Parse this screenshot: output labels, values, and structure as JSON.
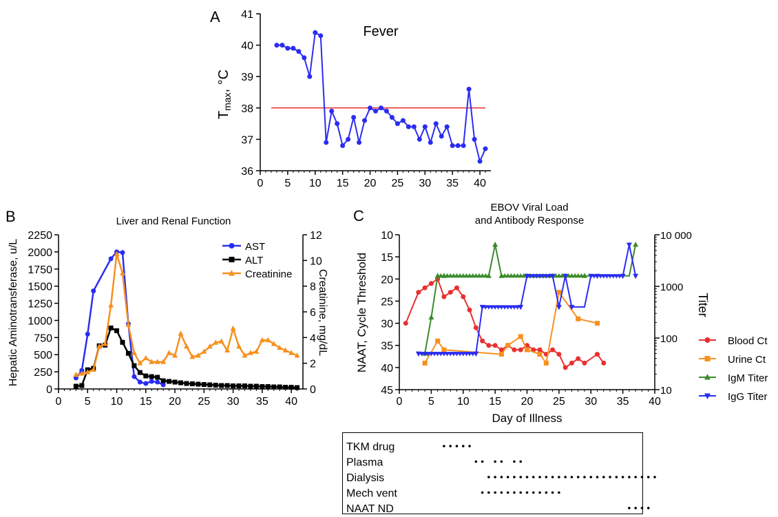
{
  "chart_data": [
    {
      "panel": "A",
      "type": "line",
      "title": "Fever",
      "xlabel": "",
      "ylabel": "T",
      "ylabel_sub": "max",
      "ylabel_unit": ", °C",
      "xlim": [
        0,
        42
      ],
      "ylim": [
        36,
        41
      ],
      "x_ticks": [
        "0",
        "5",
        "10",
        "15",
        "20",
        "25",
        "30",
        "35",
        "40"
      ],
      "y_ticks": [
        "36",
        "37",
        "38",
        "39",
        "40",
        "41"
      ],
      "reference_line": {
        "y": 38,
        "x_range": [
          2,
          41
        ],
        "color": "#e8302f"
      },
      "series": [
        {
          "color": "#2a2cf2",
          "x": [
            3,
            4,
            5,
            6,
            7,
            8,
            9,
            10,
            11,
            12,
            13,
            14,
            15,
            16,
            17,
            18,
            19,
            20,
            21,
            22,
            23,
            24,
            25,
            26,
            27,
            28,
            29,
            30,
            31,
            32,
            33,
            34,
            35,
            36,
            37,
            38,
            39,
            40,
            41
          ],
          "values": [
            40.0,
            40.0,
            39.9,
            39.9,
            39.8,
            39.6,
            39.0,
            40.4,
            40.3,
            36.9,
            37.9,
            37.5,
            36.8,
            37.0,
            37.7,
            36.9,
            37.6,
            38.0,
            37.9,
            38.0,
            37.9,
            37.7,
            37.5,
            37.6,
            37.4,
            37.4,
            37.0,
            37.4,
            36.9,
            37.5,
            37.1,
            37.4,
            36.8,
            36.8,
            36.8,
            38.6,
            37.0,
            36.3,
            36.7
          ]
        }
      ]
    },
    {
      "panel": "B",
      "type": "line",
      "title": "Liver and Renal Function",
      "xlabel": "",
      "ylabel": "Hepatic Aminotransferase, u/L",
      "y2label": "Creatinine, mg/dL",
      "xlim": [
        0,
        42
      ],
      "ylim": [
        0,
        2250
      ],
      "y2lim": [
        0,
        12
      ],
      "x_ticks": [
        "0",
        "5",
        "10",
        "15",
        "20",
        "25",
        "30",
        "35",
        "40"
      ],
      "y_ticks": [
        "0",
        "250",
        "500",
        "750",
        "1000",
        "1250",
        "1500",
        "1750",
        "2000",
        "2250"
      ],
      "y2_ticks": [
        "0",
        "2",
        "4",
        "6",
        "8",
        "10",
        "12"
      ],
      "legend_position": "top-right",
      "series": [
        {
          "name": "AST",
          "color": "#2a2cf2",
          "marker": "circle",
          "axis": "left",
          "x": [
            3,
            4,
            5,
            6,
            9,
            10,
            11,
            12,
            13,
            14,
            15,
            16,
            17,
            18
          ],
          "values": [
            160,
            270,
            800,
            1430,
            1900,
            2000,
            1990,
            950,
            180,
            100,
            80,
            110,
            100,
            60
          ]
        },
        {
          "name": "ALT",
          "color": "#000000",
          "marker": "square",
          "axis": "left",
          "x": [
            3,
            4,
            5,
            6,
            7,
            8,
            9,
            10,
            11,
            12,
            13,
            14,
            15,
            16,
            17,
            18,
            19,
            20,
            21,
            22,
            23,
            24,
            25,
            26,
            27,
            28,
            29,
            30,
            31,
            32,
            33,
            34,
            35,
            36,
            37,
            38,
            39,
            40,
            41
          ],
          "values": [
            40,
            50,
            280,
            300,
            630,
            640,
            890,
            850,
            680,
            520,
            340,
            240,
            190,
            180,
            170,
            120,
            110,
            100,
            90,
            80,
            75,
            70,
            65,
            60,
            55,
            50,
            50,
            45,
            45,
            45,
            40,
            40,
            35,
            35,
            30,
            30,
            25,
            25,
            20
          ]
        },
        {
          "name": "Creatinine",
          "color": "#f7901e",
          "marker": "triangle-up",
          "axis": "right",
          "x": [
            3,
            4,
            5,
            6,
            7,
            8,
            9,
            10,
            11,
            12,
            13,
            14,
            15,
            16,
            17,
            18,
            19,
            20,
            21,
            22,
            23,
            24,
            25,
            26,
            27,
            28,
            29,
            30,
            31,
            32,
            33,
            34,
            35,
            36,
            37,
            38,
            39,
            40,
            41
          ],
          "values": [
            1.1,
            1.2,
            1.3,
            1.5,
            3.3,
            3.5,
            6.5,
            10.5,
            9.0,
            5.0,
            2.8,
            2.0,
            2.4,
            2.1,
            2.1,
            2.1,
            2.8,
            2.6,
            4.3,
            3.3,
            2.5,
            2.6,
            2.9,
            3.3,
            3.6,
            3.7,
            3.0,
            4.7,
            3.3,
            2.6,
            2.8,
            2.9,
            3.8,
            3.8,
            3.5,
            3.2,
            3.0,
            2.8,
            2.6
          ]
        }
      ]
    },
    {
      "panel": "C",
      "type": "line",
      "title": "EBOV Viral Load",
      "subtitle": "and Antibody Response",
      "xlabel": "Day of Illness",
      "ylabel": "NAAT, Cycle Threshold",
      "y2label": "Titer",
      "xlim": [
        0,
        40
      ],
      "ylim": [
        45,
        10
      ],
      "y2_scale": "log",
      "y2lim": [
        10,
        10000
      ],
      "x_ticks": [
        "0",
        "5",
        "10",
        "15",
        "20",
        "25",
        "30",
        "35",
        "40"
      ],
      "y_ticks": [
        "10",
        "15",
        "20",
        "25",
        "30",
        "35",
        "40",
        "45"
      ],
      "y2_ticks": [
        "10",
        "100",
        "1000",
        "10 000"
      ],
      "legend_position": "right",
      "series": [
        {
          "name": "Blood Ct",
          "color": "#e8302f",
          "marker": "circle",
          "axis": "left",
          "x": [
            1,
            3,
            4,
            5,
            6,
            7,
            8,
            9,
            10,
            11,
            12,
            13,
            14,
            15,
            16,
            17,
            18,
            19,
            20,
            21,
            22,
            23,
            24,
            25,
            26,
            27,
            28,
            29,
            31,
            32
          ],
          "values": [
            30,
            23,
            22,
            21,
            20,
            24,
            23,
            22,
            24,
            27,
            31,
            34,
            35,
            35,
            36,
            35,
            36,
            36,
            35,
            36,
            36,
            37,
            36,
            37,
            40,
            39,
            38,
            39,
            37,
            39
          ]
        },
        {
          "name": "Urine Ct",
          "color": "#f7901e",
          "marker": "square",
          "axis": "left",
          "x": [
            4,
            6,
            7,
            16,
            17,
            19,
            20,
            22,
            23,
            25,
            28,
            31
          ],
          "values": [
            39,
            34,
            36,
            37,
            35,
            33,
            36,
            37,
            39,
            23,
            29,
            30
          ]
        },
        {
          "name": "IgM Titer",
          "color": "#3b8b2a",
          "marker": "triangle-up",
          "axis": "right",
          "x": [
            4,
            5,
            6,
            7,
            14,
            15,
            16,
            29,
            37
          ],
          "values": [
            50,
            250,
            1600,
            1600,
            1600,
            6400,
            1600,
            1600,
            6400
          ]
        },
        {
          "name": "IgG Titer",
          "color": "#2a2cf2",
          "marker": "triangle-down",
          "axis": "right",
          "x": [
            3,
            12,
            13,
            19,
            20,
            24,
            25,
            26,
            27,
            30,
            31,
            35,
            36,
            37
          ],
          "values": [
            50,
            50,
            400,
            400,
            1600,
            1600,
            400,
            1600,
            400,
            1600,
            1600,
            1600,
            6400,
            1600
          ]
        }
      ]
    }
  ],
  "timeline": {
    "rows": [
      {
        "label": "TKM drug",
        "days": [
          7,
          8,
          9,
          10,
          11
        ]
      },
      {
        "label": "Plasma",
        "days": [
          12,
          13,
          15,
          16,
          18,
          19
        ]
      },
      {
        "label": "Dialysis",
        "days": [
          14,
          15,
          16,
          17,
          18,
          19,
          20,
          21,
          22,
          23,
          24,
          25,
          26,
          27,
          28,
          29,
          30,
          31,
          32,
          33,
          34,
          35,
          36,
          37,
          38,
          39,
          40
        ]
      },
      {
        "label": "Mech vent",
        "days": [
          13,
          14,
          15,
          16,
          17,
          18,
          19,
          20,
          21,
          22,
          23,
          24,
          25
        ]
      },
      {
        "label": "NAAT ND",
        "days": [
          36,
          37,
          38,
          39
        ]
      }
    ]
  }
}
